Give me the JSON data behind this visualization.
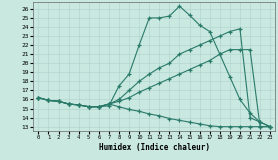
{
  "xlabel": "Humidex (Indice chaleur)",
  "bg_color": "#c8e8e0",
  "line_color": "#2a7a6a",
  "grid_color": "#b0d0cc",
  "xlim": [
    -0.5,
    23.5
  ],
  "ylim": [
    12.5,
    26.8
  ],
  "yticks": [
    13,
    14,
    15,
    16,
    17,
    18,
    19,
    20,
    21,
    22,
    23,
    24,
    25,
    26
  ],
  "xticks": [
    0,
    1,
    2,
    3,
    4,
    5,
    6,
    7,
    8,
    9,
    10,
    11,
    12,
    13,
    14,
    15,
    16,
    17,
    18,
    19,
    20,
    21,
    22,
    23
  ],
  "line_peak": {
    "x": [
      0,
      1,
      2,
      3,
      4,
      5,
      6,
      7,
      8,
      9,
      10,
      11,
      12,
      13,
      14,
      15,
      16,
      17,
      18,
      19,
      20,
      21,
      22,
      23
    ],
    "y": [
      16.2,
      15.9,
      15.8,
      15.5,
      15.4,
      15.2,
      15.2,
      15.3,
      17.5,
      18.8,
      22.0,
      25.0,
      25.0,
      25.2,
      26.3,
      25.3,
      24.2,
      23.5,
      21.0,
      18.5,
      16.0,
      14.5,
      13.5,
      13.0
    ]
  },
  "line_high": {
    "x": [
      0,
      1,
      2,
      3,
      4,
      5,
      6,
      7,
      8,
      9,
      10,
      11,
      12,
      13,
      14,
      15,
      16,
      17,
      18,
      19,
      20,
      21,
      22,
      23
    ],
    "y": [
      16.2,
      15.9,
      15.8,
      15.5,
      15.4,
      15.2,
      15.2,
      15.5,
      16.0,
      17.0,
      18.0,
      18.8,
      19.5,
      20.0,
      21.0,
      21.5,
      22.0,
      22.5,
      23.0,
      23.5,
      23.8,
      14.0,
      13.5,
      13.0
    ]
  },
  "line_mid": {
    "x": [
      0,
      1,
      2,
      3,
      4,
      5,
      6,
      7,
      8,
      9,
      10,
      11,
      12,
      13,
      14,
      15,
      16,
      17,
      18,
      19,
      20,
      21,
      22,
      23
    ],
    "y": [
      16.2,
      15.9,
      15.8,
      15.5,
      15.4,
      15.2,
      15.2,
      15.5,
      15.8,
      16.2,
      16.8,
      17.3,
      17.8,
      18.3,
      18.8,
      19.3,
      19.8,
      20.3,
      21.0,
      21.5,
      21.5,
      21.5,
      13.0,
      13.0
    ]
  },
  "line_low": {
    "x": [
      0,
      1,
      2,
      3,
      4,
      5,
      6,
      7,
      8,
      9,
      10,
      11,
      12,
      13,
      14,
      15,
      16,
      17,
      18,
      19,
      20,
      21,
      22,
      23
    ],
    "y": [
      16.2,
      15.9,
      15.8,
      15.5,
      15.4,
      15.2,
      15.2,
      15.5,
      15.2,
      14.9,
      14.7,
      14.4,
      14.2,
      13.9,
      13.7,
      13.5,
      13.3,
      13.1,
      13.0,
      13.0,
      13.0,
      13.0,
      13.0,
      13.0
    ]
  }
}
